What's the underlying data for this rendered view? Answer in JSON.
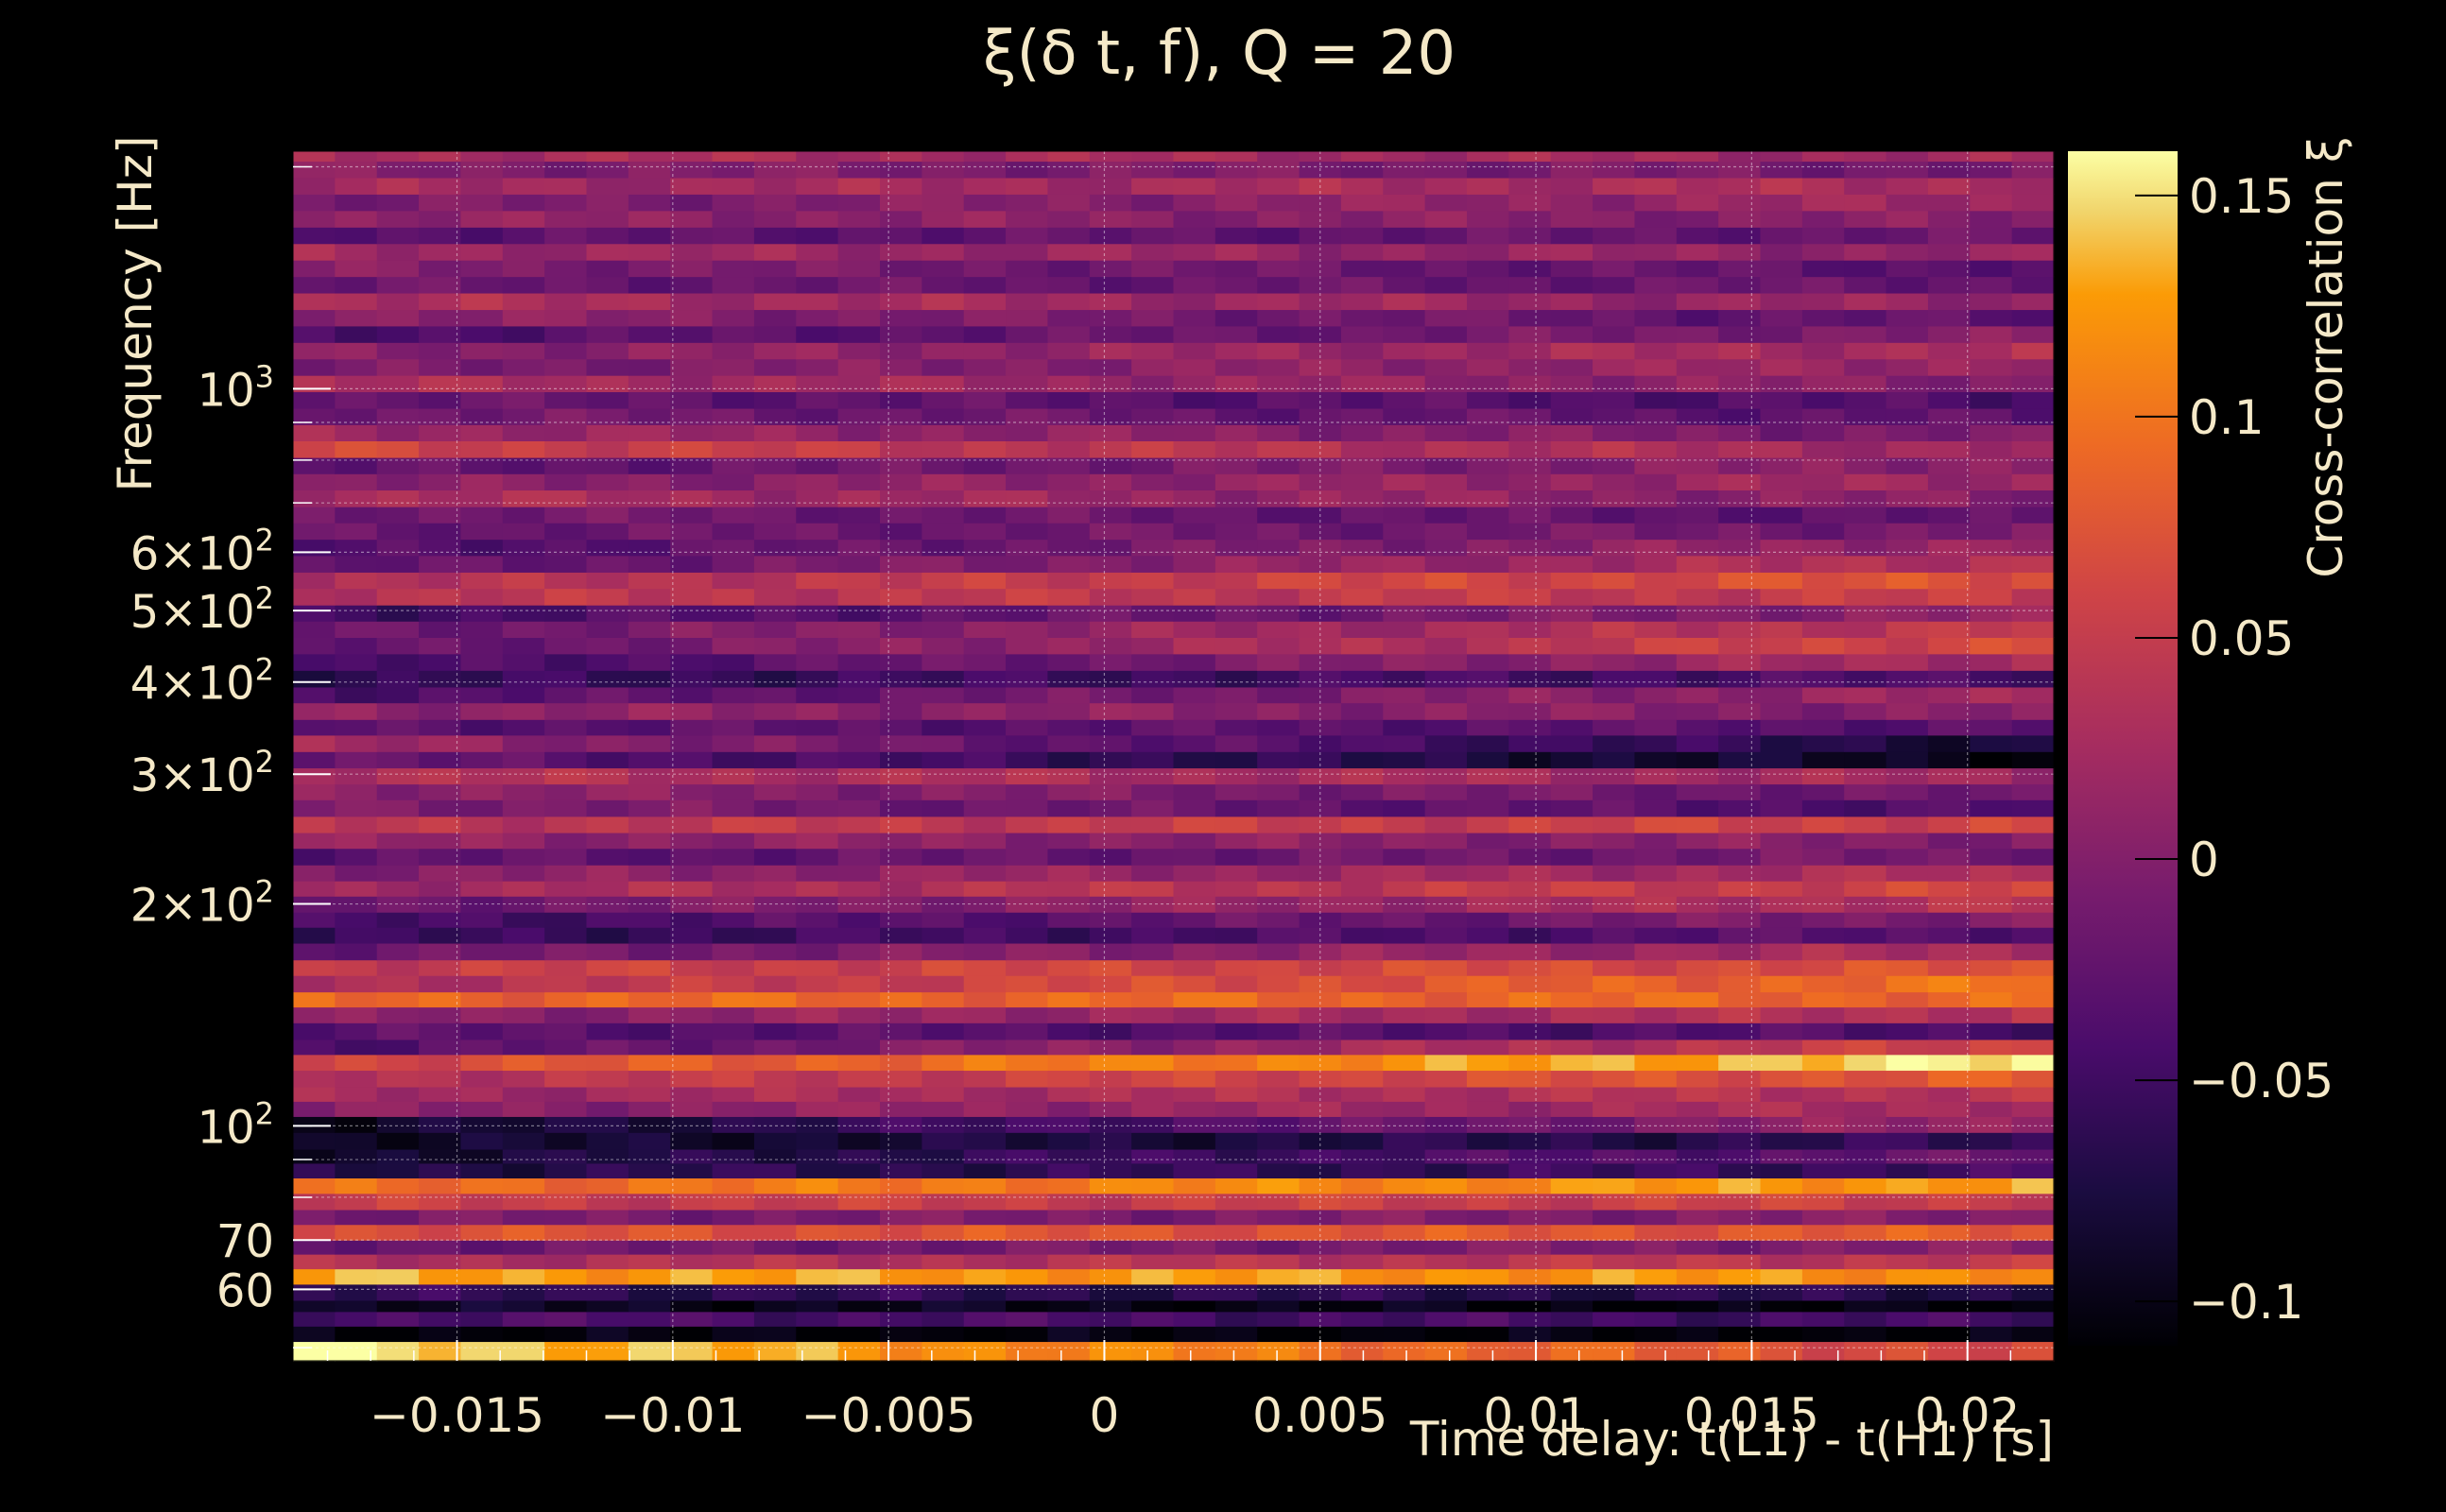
{
  "chart_data": {
    "type": "heatmap",
    "title": "ξ(δ t, f), Q = 20",
    "xlabel": "Time delay: t(L1) - t(H1) [s]",
    "ylabel": "Frequency [Hz]",
    "colorbar_label": "Cross-correlation ξ",
    "xlim": [
      -0.0188,
      0.022
    ],
    "ylim": [
      48,
      2100
    ],
    "y_scale": "log",
    "grid": true,
    "colormap": "inferno",
    "x_ticks": [
      {
        "value": -0.015,
        "label": "−0.015"
      },
      {
        "value": -0.01,
        "label": "−0.01"
      },
      {
        "value": -0.005,
        "label": "−0.005"
      },
      {
        "value": 0,
        "label": "0"
      },
      {
        "value": 0.005,
        "label": "0.005"
      },
      {
        "value": 0.01,
        "label": "0.01"
      },
      {
        "value": 0.015,
        "label": "0.015"
      },
      {
        "value": 0.02,
        "label": "0.02"
      }
    ],
    "y_ticks": [
      {
        "value": 60,
        "label": "60"
      },
      {
        "value": 70,
        "label": "70"
      },
      {
        "value": 100,
        "label": "10",
        "sup": "2"
      },
      {
        "value": 200,
        "label": "2×10",
        "sup": "2"
      },
      {
        "value": 300,
        "label": "3×10",
        "sup": "2"
      },
      {
        "value": 400,
        "label": "4×10",
        "sup": "2"
      },
      {
        "value": 500,
        "label": "5×10",
        "sup": "2"
      },
      {
        "value": 600,
        "label": "6×10",
        "sup": "2"
      },
      {
        "value": 1000,
        "label": "10",
        "sup": "3"
      }
    ],
    "colorbar": {
      "min": -0.11,
      "max": 0.16,
      "ticks": [
        {
          "value": 0.15,
          "label": "0.15"
        },
        {
          "value": 0.1,
          "label": "0.1"
        },
        {
          "value": 0.05,
          "label": "0.05"
        },
        {
          "value": 0,
          "label": "0"
        },
        {
          "value": -0.05,
          "label": "−0.05"
        },
        {
          "value": -0.1,
          "label": "−0.1"
        }
      ]
    },
    "n_time_bins": 42,
    "bands": [
      {
        "f_low": 48,
        "f_high": 51,
        "start": 0.155,
        "end": 0.06
      },
      {
        "f_low": 51,
        "f_high": 53.5,
        "start": -0.105,
        "end": -0.11
      },
      {
        "f_low": 53.5,
        "f_high": 56,
        "start": -0.04,
        "end": -0.05
      },
      {
        "f_low": 56,
        "f_high": 58,
        "start": -0.09,
        "end": -0.11
      },
      {
        "f_low": 58,
        "f_high": 61,
        "start": -0.06,
        "end": -0.07
      },
      {
        "f_low": 61,
        "f_high": 64,
        "start": 0.13,
        "end": 0.12
      },
      {
        "f_low": 64,
        "f_high": 67,
        "start": 0.03,
        "end": 0.045
      },
      {
        "f_low": 67,
        "f_high": 70,
        "start": -0.02,
        "end": 0.0
      },
      {
        "f_low": 70,
        "f_high": 73.5,
        "start": 0.07,
        "end": 0.08
      },
      {
        "f_low": 73.5,
        "f_high": 77,
        "start": -0.01,
        "end": 0.0
      },
      {
        "f_low": 77,
        "f_high": 81,
        "start": 0.05,
        "end": 0.055
      },
      {
        "f_low": 81,
        "f_high": 85,
        "start": 0.09,
        "end": 0.13
      },
      {
        "f_low": 85,
        "f_high": 89,
        "start": -0.07,
        "end": -0.05
      },
      {
        "f_low": 89,
        "f_high": 93,
        "start": -0.085,
        "end": -0.02
      },
      {
        "f_low": 93,
        "f_high": 98,
        "start": -0.09,
        "end": -0.06
      },
      {
        "f_low": 98,
        "f_high": 103,
        "start": -0.095,
        "end": 0.02
      },
      {
        "f_low": 103,
        "f_high": 108,
        "start": 0.0,
        "end": 0.03
      },
      {
        "f_low": 108,
        "f_high": 113,
        "start": 0.02,
        "end": 0.04
      },
      {
        "f_low": 113,
        "f_high": 119,
        "start": 0.035,
        "end": 0.08
      },
      {
        "f_low": 119,
        "f_high": 125,
        "start": 0.06,
        "end": 0.155
      },
      {
        "f_low": 125,
        "f_high": 131,
        "start": -0.04,
        "end": 0.06
      },
      {
        "f_low": 131,
        "f_high": 138,
        "start": -0.03,
        "end": -0.04
      },
      {
        "f_low": 138,
        "f_high": 145,
        "start": 0.0,
        "end": 0.04
      },
      {
        "f_low": 145,
        "f_high": 152,
        "start": 0.09,
        "end": 0.09
      },
      {
        "f_low": 152,
        "f_high": 160,
        "start": 0.03,
        "end": 0.1
      },
      {
        "f_low": 160,
        "f_high": 168,
        "start": 0.05,
        "end": 0.07
      },
      {
        "f_low": 168,
        "f_high": 177,
        "start": -0.02,
        "end": 0.03
      },
      {
        "f_low": 177,
        "f_high": 186,
        "start": -0.06,
        "end": -0.03
      },
      {
        "f_low": 186,
        "f_high": 195,
        "start": -0.05,
        "end": 0.0
      },
      {
        "f_low": 195,
        "f_high": 205,
        "start": -0.02,
        "end": 0.04
      },
      {
        "f_low": 205,
        "f_high": 215,
        "start": 0.02,
        "end": 0.06
      },
      {
        "f_low": 215,
        "f_high": 226,
        "start": 0.0,
        "end": 0.03
      },
      {
        "f_low": 226,
        "f_high": 238,
        "start": -0.03,
        "end": -0.01
      },
      {
        "f_low": 238,
        "f_high": 250,
        "start": 0.01,
        "end": 0.0
      },
      {
        "f_low": 250,
        "f_high": 263,
        "start": 0.04,
        "end": 0.06
      },
      {
        "f_low": 263,
        "f_high": 277,
        "start": 0.0,
        "end": -0.04
      },
      {
        "f_low": 277,
        "f_high": 291,
        "start": 0.01,
        "end": -0.02
      },
      {
        "f_low": 291,
        "f_high": 306,
        "start": 0.035,
        "end": 0.02
      },
      {
        "f_low": 306,
        "f_high": 322,
        "start": -0.02,
        "end": -0.1
      },
      {
        "f_low": 322,
        "f_high": 339,
        "start": 0.02,
        "end": -0.08
      },
      {
        "f_low": 339,
        "f_high": 356,
        "start": -0.03,
        "end": -0.03
      },
      {
        "f_low": 356,
        "f_high": 375,
        "start": 0.01,
        "end": 0.0
      },
      {
        "f_low": 375,
        "f_high": 394,
        "start": -0.04,
        "end": 0.02
      },
      {
        "f_low": 394,
        "f_high": 415,
        "start": -0.06,
        "end": -0.04
      },
      {
        "f_low": 415,
        "f_high": 437,
        "start": -0.05,
        "end": 0.03
      },
      {
        "f_low": 437,
        "f_high": 460,
        "start": -0.03,
        "end": 0.07
      },
      {
        "f_low": 460,
        "f_high": 484,
        "start": -0.02,
        "end": 0.05
      },
      {
        "f_low": 484,
        "f_high": 509,
        "start": -0.05,
        "end": 0.01
      },
      {
        "f_low": 509,
        "f_high": 536,
        "start": 0.04,
        "end": 0.05
      },
      {
        "f_low": 536,
        "f_high": 564,
        "start": 0.03,
        "end": 0.075
      },
      {
        "f_low": 564,
        "f_high": 594,
        "start": -0.03,
        "end": 0.04
      },
      {
        "f_low": 594,
        "f_high": 625,
        "start": -0.04,
        "end": 0.02
      },
      {
        "f_low": 625,
        "f_high": 658,
        "start": -0.02,
        "end": -0.01
      },
      {
        "f_low": 658,
        "f_high": 692,
        "start": -0.01,
        "end": -0.03
      },
      {
        "f_low": 692,
        "f_high": 729,
        "start": 0.03,
        "end": 0.0
      },
      {
        "f_low": 729,
        "f_high": 767,
        "start": 0.0,
        "end": 0.02
      },
      {
        "f_low": 767,
        "f_high": 807,
        "start": -0.03,
        "end": 0.01
      },
      {
        "f_low": 807,
        "f_high": 850,
        "start": 0.06,
        "end": 0.02
      },
      {
        "f_low": 850,
        "f_high": 894,
        "start": 0.02,
        "end": -0.01
      },
      {
        "f_low": 894,
        "f_high": 941,
        "start": -0.01,
        "end": -0.03
      },
      {
        "f_low": 941,
        "f_high": 991,
        "start": -0.02,
        "end": -0.04
      },
      {
        "f_low": 991,
        "f_high": 1043,
        "start": 0.03,
        "end": 0.0
      },
      {
        "f_low": 1043,
        "f_high": 1098,
        "start": -0.01,
        "end": 0.02
      },
      {
        "f_low": 1098,
        "f_high": 1156,
        "start": 0.0,
        "end": 0.03
      },
      {
        "f_low": 1156,
        "f_high": 1217,
        "start": -0.04,
        "end": 0.0
      },
      {
        "f_low": 1217,
        "f_high": 1281,
        "start": 0.01,
        "end": -0.03
      },
      {
        "f_low": 1281,
        "f_high": 1349,
        "start": 0.03,
        "end": 0.01
      },
      {
        "f_low": 1349,
        "f_high": 1420,
        "start": -0.02,
        "end": -0.02
      },
      {
        "f_low": 1420,
        "f_high": 1495,
        "start": 0.0,
        "end": -0.03
      },
      {
        "f_low": 1495,
        "f_high": 1574,
        "start": 0.02,
        "end": 0.01
      },
      {
        "f_low": 1574,
        "f_high": 1657,
        "start": -0.03,
        "end": -0.02
      },
      {
        "f_low": 1657,
        "f_high": 1745,
        "start": 0.01,
        "end": 0.0
      },
      {
        "f_low": 1745,
        "f_high": 1837,
        "start": -0.01,
        "end": 0.02
      },
      {
        "f_low": 1837,
        "f_high": 1934,
        "start": 0.02,
        "end": 0.03
      },
      {
        "f_low": 1934,
        "f_high": 2036,
        "start": 0.0,
        "end": -0.01
      },
      {
        "f_low": 2036,
        "f_high": 2100,
        "start": 0.03,
        "end": 0.02
      }
    ]
  }
}
